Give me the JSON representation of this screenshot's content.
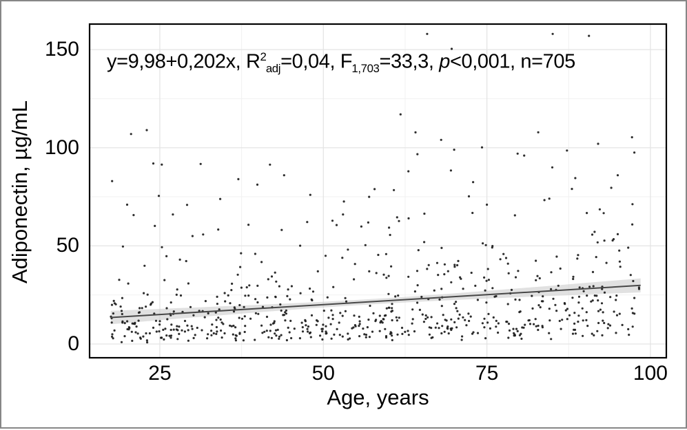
{
  "figure": {
    "background": "#ffffff",
    "border_color": "#868686"
  },
  "chart_data": {
    "type": "scatter",
    "title": "",
    "xlabel": "Age, years",
    "ylabel": "Adiponectin, µg/mL",
    "xlim": [
      14.26,
      102.43
    ],
    "ylim": [
      -7,
      163
    ],
    "x_ticks": [
      25,
      50,
      75,
      100
    ],
    "y_ticks": [
      0,
      50,
      100,
      150
    ],
    "x_minor_gridlines": [
      37.5,
      62.5,
      87.5
    ],
    "y_minor_gridlines": [
      25,
      75,
      125
    ],
    "grid": true,
    "legend": "none",
    "equation": "y=9,98+0,202x",
    "r2_adj": "0,04",
    "F_df": "1,703",
    "F_value": "33,3",
    "p_value": "<0,001",
    "n": 705,
    "annotation": {
      "part1": "y=9,98+0,202x, R",
      "sup2": "2",
      "sub_adj": "adj",
      "part2": "=0,04, F",
      "sub_df": "1,703",
      "part3": "=33,3, ",
      "p": "p",
      "part4": "<0,001, n=705"
    },
    "regression": {
      "intercept": 9.98,
      "slope": 0.202,
      "x_start": 17.5,
      "x_end": 98.5
    },
    "ci_band": {
      "half_width_center": 1.35,
      "center_x": 57,
      "spread": 17
    },
    "scatter_generation": {
      "n": 705,
      "seed": 20,
      "x_min": 17.5,
      "x_max": 98.5,
      "noise_mu": -0.36,
      "noise_sigma": 0.85,
      "y_min": 0.2,
      "y_max": 158
    },
    "notable_points": [
      [
        90.6,
        157
      ],
      [
        61.8,
        117
      ],
      [
        23,
        109
      ],
      [
        20.6,
        107
      ],
      [
        68,
        104
      ],
      [
        70,
        99
      ],
      [
        79.7,
        97
      ],
      [
        80.7,
        96
      ],
      [
        24,
        92
      ],
      [
        85,
        90
      ],
      [
        92,
        102
      ],
      [
        37,
        84
      ],
      [
        17.7,
        83
      ],
      [
        88,
        79
      ],
      [
        48,
        76
      ],
      [
        75,
        71
      ],
      [
        20,
        71
      ],
      [
        44,
        86
      ],
      [
        27,
        66
      ],
      [
        30,
        55
      ],
      [
        57,
        75
      ],
      [
        53,
        66
      ],
      [
        63,
        88
      ],
      [
        95,
        86
      ]
    ],
    "colors": {
      "point": "#1c1c1c",
      "line": "#474747",
      "band": "#c9c9c9",
      "grid_major": "#e4e4e4",
      "grid_minor": "#f1f1f1",
      "panel_border": "#000000",
      "text": "#000000"
    }
  }
}
